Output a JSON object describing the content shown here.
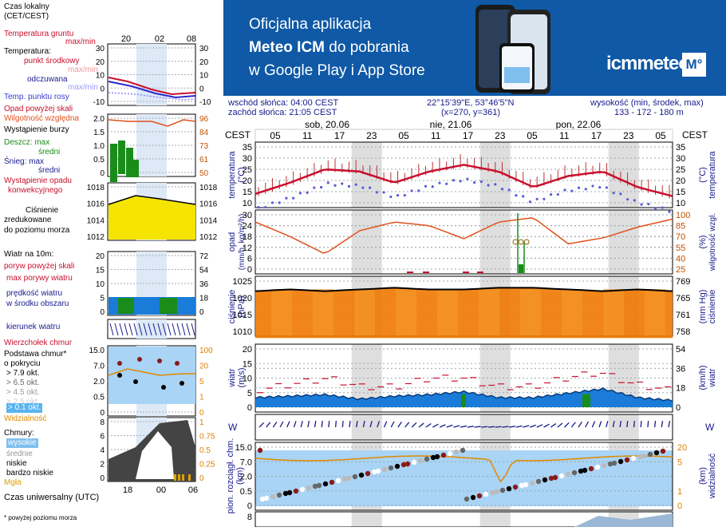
{
  "legend": {
    "local_time": "Czas lokalny",
    "local_time_zone": "(CET/CEST)",
    "top_ticks": [
      "20",
      "02",
      "08"
    ],
    "soil_temp": "Temperatura gruntu",
    "soil_temp_sub": "max/min",
    "temperature": "Temperatura:",
    "temp_mid": "punkt środkowy",
    "temp_maxmin": "max/min",
    "temp_feel": "odczuwana",
    "temp_feel_sub": "max/min",
    "dew_point": "Temp. punktu rosy",
    "precip_over": "Opad powyżej skali",
    "humidity": "Wilgotność względna",
    "storm": "Wystąpienie burzy",
    "rain_max": "Deszcz: max",
    "rain_avg": "średni",
    "snow_max": "Śnieg:   max",
    "snow_avg": "średni",
    "conv": "Wystąpienie opadu",
    "conv2": "konwekcyjnego",
    "pressure1": "Ciśnienie",
    "pressure2": "zredukowane",
    "pressure3": "do poziomu morza",
    "wind_10m": "Wiatr na 10m:",
    "gust_over": "poryw powyżej skali",
    "gust_max": "max porywy wiatru",
    "wind_speed": "prędkość wiatru",
    "wind_area": "w środku obszaru",
    "wind_dir": "kierunek wiatru",
    "cloud_top": "Wierzchołek chmur",
    "cloud_base": "Podstawa chmur*",
    "cloud_base2": "o pokryciu",
    "okt": [
      "> 7.9 okt.",
      "> 6.5 okt.",
      "> 4.5 okt.",
      "> 2.5 okt.",
      "> 0.1 okt."
    ],
    "visibility": "Widzialność",
    "clouds": "Chmury:",
    "clouds_high": "wysokie",
    "clouds_mid": "średnie",
    "clouds_low": "niskie",
    "clouds_vlow": "bardzo niskie",
    "fog": "Mgła",
    "utc": "Czas uniwersalny (UTC)",
    "bottom_ticks": [
      "18",
      "00",
      "06"
    ],
    "footnote": "* powyżej poziomu morza",
    "axis_temp_l": [
      "30",
      "20",
      "10",
      "0",
      "-10"
    ],
    "axis_temp_r": [
      "30",
      "20",
      "10",
      "0",
      "-10"
    ],
    "axis_precip_l": [
      "2.0",
      "1.5",
      "1.0",
      "0.5",
      "0"
    ],
    "axis_precip_r": [
      "96",
      "84",
      "73",
      "61",
      "50"
    ],
    "axis_press_l": [
      "1018",
      "1016",
      "1014",
      "1012"
    ],
    "axis_press_r": [
      "1018",
      "1016",
      "1014",
      "1012"
    ],
    "axis_wind_l": [
      "20",
      "15",
      "10",
      "5",
      "0"
    ],
    "axis_wind_r": [
      "72",
      "54",
      "36",
      "18",
      "0"
    ],
    "axis_cb_l": [
      "15.0",
      "7.0",
      "2.0",
      "0.5",
      "0"
    ],
    "axis_cb_r": [
      "100",
      "20",
      "5",
      "1",
      "0"
    ],
    "axis_cl_l": [
      "8",
      "6",
      "4",
      "2",
      "0"
    ],
    "axis_cl_r": [
      "1",
      "0.75",
      "0.5",
      "0.25",
      "0"
    ]
  },
  "banner": {
    "line1": "Oficjalna aplikacja",
    "line2_bold": "Meteo ICM",
    "line2_rest": " do pobrania",
    "line3": "w Google Play i App Store",
    "logo": "icmmeteo",
    "logo_box": "M°"
  },
  "info": {
    "sunrise": "wschód słońca: 04:00 CEST",
    "sunset": "zachód słońca: 21:05 CEST",
    "coords": "22°15'39\"E, 53°46'5\"N",
    "grid": "(x=270,  y=361)",
    "elev_label": "wysokość (min, środek, max)",
    "elev": "133 - 172 - 180 m"
  },
  "main": {
    "cest_left": "CEST",
    "cest_right": "CEST",
    "days": [
      "sob, 20.06",
      "nie, 21.06",
      "pon, 22.06"
    ],
    "hours": [
      "05",
      "11",
      "17",
      "23",
      "05",
      "11",
      "17",
      "23",
      "05",
      "11",
      "17",
      "23",
      "05"
    ],
    "temp_label": "temperatura",
    "temp_unit": "(°C)",
    "temp_ticks": [
      "35",
      "30",
      "25",
      "20",
      "15",
      "10"
    ],
    "precip_label": "opad",
    "precip_unit": "(mm/h, kg/m²/h)",
    "precip_ticks": [
      "30",
      "24",
      "18",
      "12",
      "6",
      "0"
    ],
    "hum_label": "wilgotność wzgl.",
    "hum_unit": "(%)",
    "hum_ticks": [
      "100",
      "85",
      "70",
      "55",
      "40",
      "25"
    ],
    "press_label": "ciśnienie",
    "press_unit": "(hPa)",
    "press_ticks": [
      "1025",
      "1020",
      "1015",
      "1010"
    ],
    "press_mm_label": "ciśnienie",
    "press_mm_unit": "(mm Hg)",
    "press_mm_ticks": [
      "769",
      "765",
      "761",
      "758"
    ],
    "wind_label": "wiatr",
    "wind_unit": "(m/s)",
    "wind_ticks": [
      "20",
      "15",
      "10",
      "5",
      "0"
    ],
    "wind_kmh_label": "wiatr",
    "wind_kmh_unit": "(km/h)",
    "wind_kmh_ticks": [
      "54",
      "36",
      "18",
      "0"
    ],
    "dir_label": "W",
    "cloud_label": "pion. rozciągł. chm.",
    "cloud_unit": "(km)",
    "cloud_ticks": [
      "15.0",
      "7.0",
      "2.0",
      "0.5",
      "0"
    ],
    "vis_label": "widzialność",
    "vis_unit": "(km)",
    "vis_ticks": [
      "20",
      "5",
      "1",
      "0"
    ],
    "bottom_tick": "8"
  },
  "colors": {
    "banner": "#0f59a6",
    "temp_line": "#c8102e",
    "humidity": "#e0501b",
    "pressure_fill": "#f07800",
    "wind_fill": "#1a7cd8",
    "cloud_bg": "#a9d4f5"
  },
  "chart_data": [
    {
      "type": "line",
      "title": "temperatura",
      "ylabel": "(°C)",
      "ylim": [
        10,
        35
      ],
      "x": [
        "20.06 05",
        "20.06 11",
        "20.06 17",
        "20.06 23",
        "21.06 05",
        "21.06 11",
        "21.06 17",
        "21.06 23",
        "22.06 05",
        "22.06 11",
        "22.06 17",
        "22.06 23",
        "23.06 05"
      ],
      "series": [
        {
          "values": [
            14,
            19,
            25,
            24,
            19,
            24,
            27,
            24,
            17,
            22,
            24,
            17,
            13
          ]
        }
      ]
    },
    {
      "type": "line",
      "title": "opad / wilgotność wzgl.",
      "ylabel": "(mm/h, kg/m²/h)",
      "ylim": [
        0,
        30
      ],
      "x": [
        "20.06 05",
        "20.06 11",
        "20.06 17",
        "20.06 23",
        "21.06 05",
        "21.06 11",
        "21.06 17",
        "21.06 23",
        "22.06 05",
        "22.06 11",
        "22.06 17",
        "22.06 23",
        "23.06 05"
      ],
      "series": [
        {
          "values": [
            90,
            70,
            46,
            78,
            90,
            85,
            67,
            90,
            96,
            60,
            68,
            83,
            94
          ]
        }
      ]
    },
    {
      "type": "area",
      "title": "ciśnienie",
      "ylabel": "(hPa)",
      "ylim": [
        1008,
        1025
      ],
      "x": [
        "20.06 05",
        "20.06 11",
        "20.06 17",
        "20.06 23",
        "21.06 05",
        "21.06 11",
        "21.06 17",
        "21.06 23",
        "22.06 05",
        "22.06 11",
        "22.06 17",
        "22.06 23",
        "23.06 05"
      ],
      "series": [
        {
          "values": [
            1022,
            1022.5,
            1022,
            1022.5,
            1023,
            1022.5,
            1022.5,
            1023,
            1023,
            1022.5,
            1022,
            1022.5,
            1022
          ]
        }
      ]
    },
    {
      "type": "area",
      "title": "wiatr",
      "ylabel": "(m/s)",
      "ylim": [
        0,
        20
      ],
      "x": [
        "20.06 05",
        "20.06 11",
        "20.06 17",
        "20.06 23",
        "21.06 05",
        "21.06 11",
        "21.06 17",
        "21.06 23",
        "22.06 05",
        "22.06 11",
        "22.06 17",
        "22.06 23",
        "23.06 05"
      ],
      "series": [
        {
          "values": [
            3,
            3.5,
            4,
            2.5,
            3.5,
            4,
            5,
            3,
            3,
            4.5,
            6,
            3,
            2
          ]
        },
        {
          "values": [
            6,
            8,
            10,
            7,
            7,
            10,
            10,
            7,
            7,
            10,
            12,
            8,
            6
          ]
        }
      ]
    }
  ]
}
